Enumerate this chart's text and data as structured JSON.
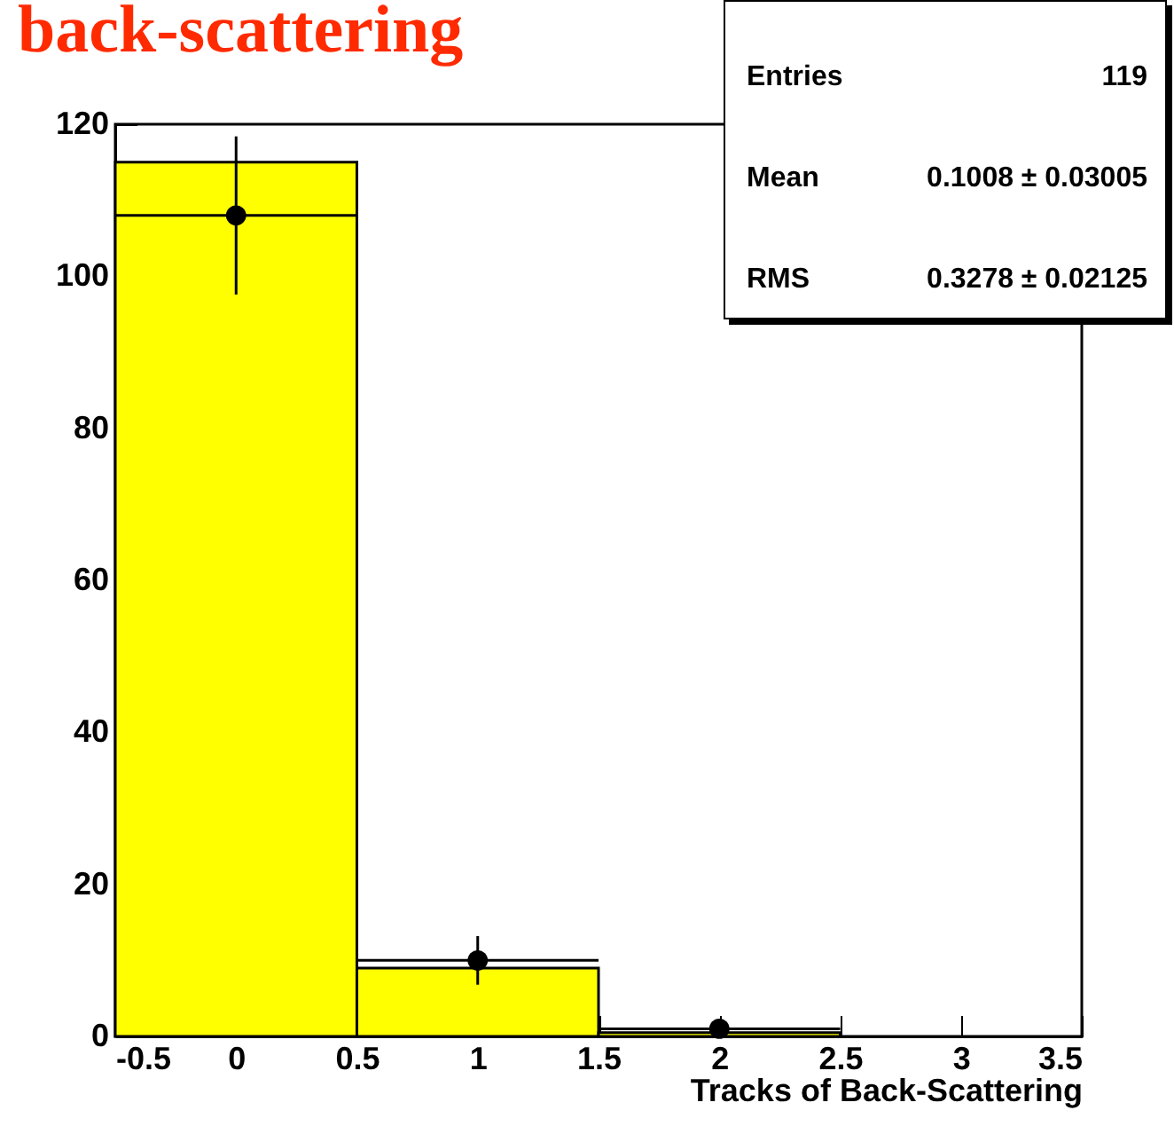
{
  "chart_data": {
    "type": "histogram",
    "title": "back-scattering",
    "xlabel": "Tracks of Back-Scattering",
    "bins": [
      -0.5,
      0.5,
      1.5,
      2.5
    ],
    "series": [
      {
        "color": "#ffff00",
        "values": [
          115,
          9,
          0.5
        ]
      },
      {
        "type": "scatter",
        "color": "#000000",
        "x": [
          0,
          1,
          2
        ],
        "values": [
          108,
          10,
          1
        ],
        "errors": [
          10.4,
          3.2,
          1
        ],
        "xerrors": [
          0.5,
          0.5,
          0.5
        ]
      }
    ],
    "annotations": [
      "Entries 119",
      "Mean 0.1008 ± 0.03005",
      "RMS 0.3278 ± 0.02125"
    ],
    "xlim": [
      -0.5,
      3.5
    ],
    "xticks": [
      -0.5,
      0,
      0.5,
      1,
      1.5,
      2,
      2.5,
      3,
      3.5
    ],
    "ylim": [
      0,
      120
    ],
    "yticks": [
      0,
      20,
      40,
      60,
      80,
      100,
      120
    ],
    "grid": false,
    "marker": "circle"
  }
}
